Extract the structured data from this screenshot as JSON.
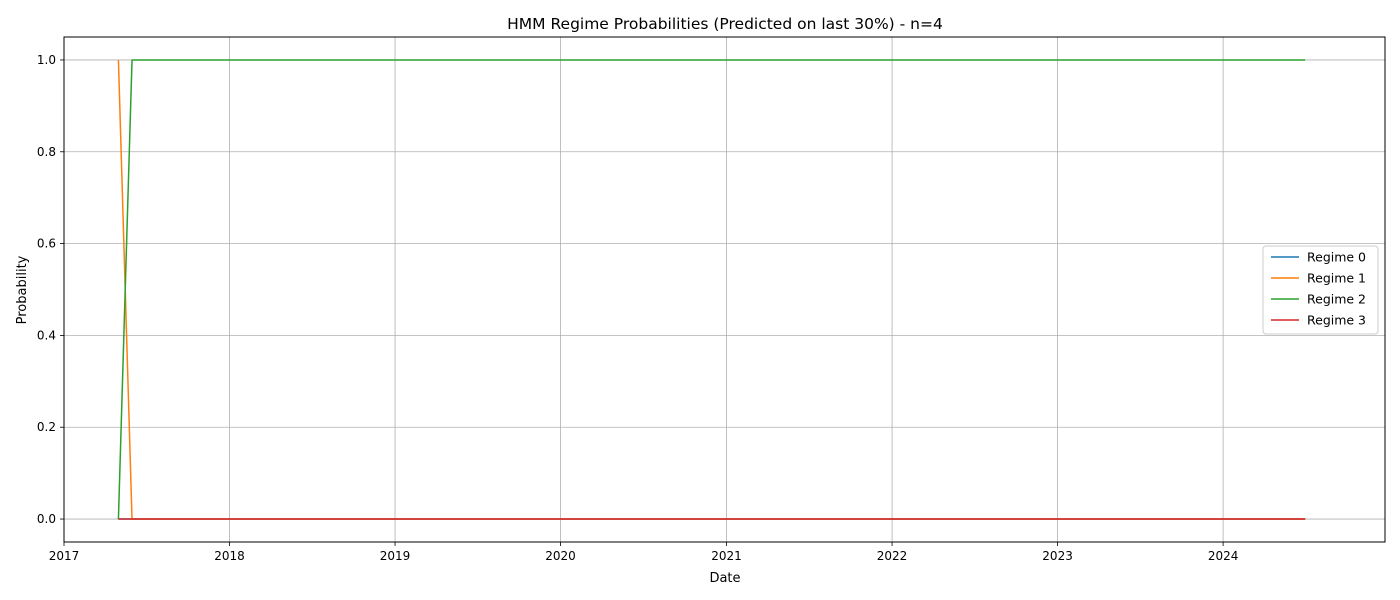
{
  "chart_data": {
    "type": "line",
    "title": "HMM Regime Probabilities (Predicted on last 30%) - n=4",
    "xlabel": "Date",
    "ylabel": "Probability",
    "xlim": [
      "2017-01-01",
      "2024-12-23"
    ],
    "ylim": [
      -0.05,
      1.05
    ],
    "x_ticks": [
      "2017",
      "2018",
      "2019",
      "2020",
      "2021",
      "2022",
      "2023",
      "2024"
    ],
    "y_ticks": [
      "0.0",
      "0.2",
      "0.4",
      "0.6",
      "0.8",
      "1.0"
    ],
    "grid": true,
    "legend_position": "center-right",
    "series": [
      {
        "name": "Regime 0",
        "color": "#1f77b4",
        "points": [
          [
            "2017-05-01",
            0.0
          ],
          [
            "2017-05-31",
            0.0
          ],
          [
            "2024-06-30",
            0.0
          ]
        ]
      },
      {
        "name": "Regime 1",
        "color": "#ff7f0e",
        "points": [
          [
            "2017-05-01",
            1.0
          ],
          [
            "2017-05-31",
            0.0
          ],
          [
            "2024-06-30",
            0.0
          ]
        ]
      },
      {
        "name": "Regime 2",
        "color": "#2ca02c",
        "points": [
          [
            "2017-05-01",
            0.0
          ],
          [
            "2017-05-31",
            1.0
          ],
          [
            "2024-06-30",
            1.0
          ]
        ]
      },
      {
        "name": "Regime 3",
        "color": "#d62728",
        "points": [
          [
            "2017-05-01",
            0.0
          ],
          [
            "2017-05-31",
            0.0
          ],
          [
            "2024-06-30",
            0.0
          ]
        ]
      }
    ]
  }
}
